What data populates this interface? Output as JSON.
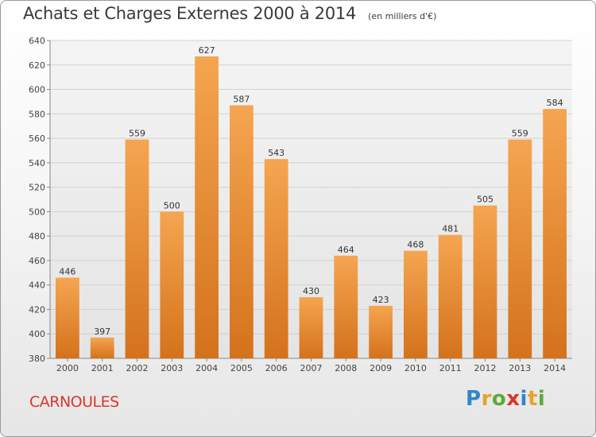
{
  "header": {
    "title": "Achats et Charges Externes 2000 à 2014",
    "subtitle": "(en milliers d'€)"
  },
  "footer": {
    "commune": "CARNOULES",
    "logo_text": "Proxiti"
  },
  "colors": {
    "bar_top": "#f5a550",
    "bar_bottom": "#d4721c",
    "title": "#3a3a3a",
    "commune": "#d9362b"
  },
  "chart_data": {
    "type": "bar",
    "categories": [
      "2000",
      "2001",
      "2002",
      "2003",
      "2004",
      "2005",
      "2006",
      "2007",
      "2008",
      "2009",
      "2010",
      "2011",
      "2012",
      "2013",
      "2014"
    ],
    "values": [
      446,
      397,
      559,
      500,
      627,
      587,
      543,
      430,
      464,
      423,
      468,
      481,
      505,
      559,
      584
    ],
    "ylim": [
      380,
      640
    ],
    "yticks": [
      380,
      400,
      420,
      440,
      460,
      480,
      500,
      520,
      540,
      560,
      580,
      600,
      620,
      640
    ],
    "grid": true,
    "data_labels": true
  }
}
